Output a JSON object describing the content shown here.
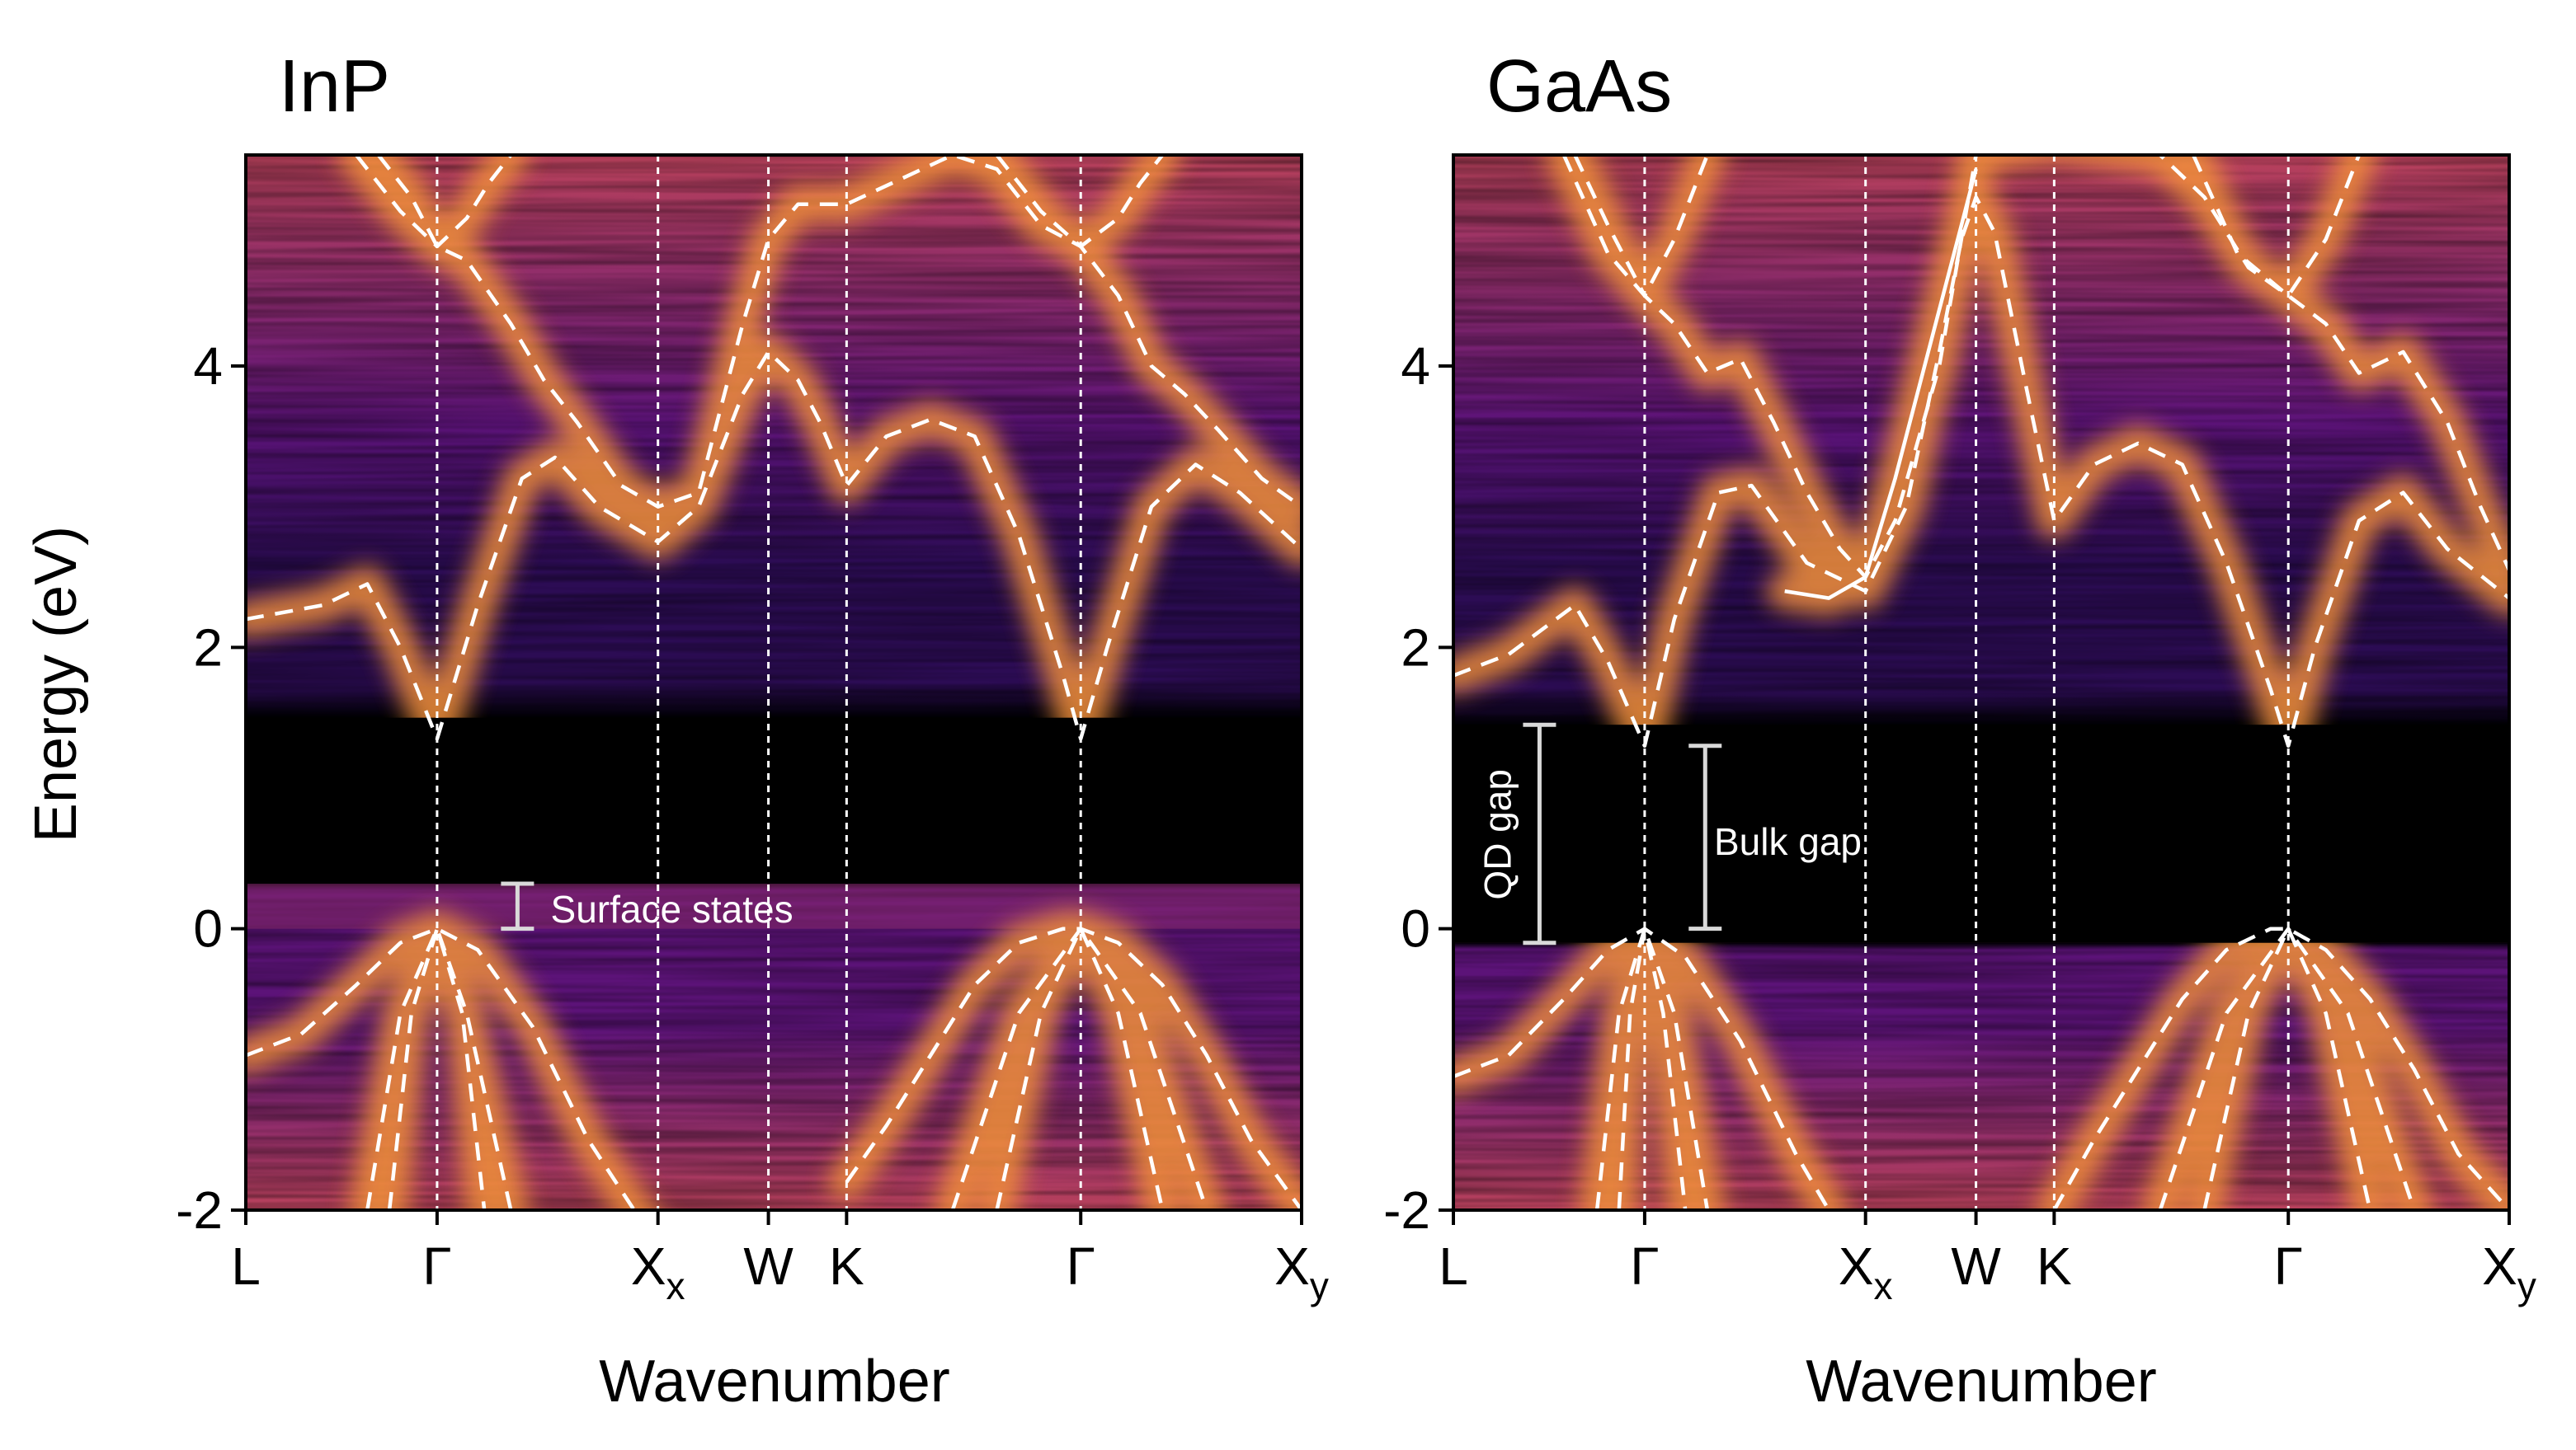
{
  "figure": {
    "ylabel": "Energy (eV)",
    "xlabel": "Wavenumber",
    "colormap": [
      "#000004",
      "#2c0c54",
      "#5c1378",
      "#8a2a6d",
      "#b8415b",
      "#de6340",
      "#f2903a",
      "#f8bf4e",
      "#fcf2b0"
    ]
  },
  "chart_data": [
    {
      "type": "heatmap",
      "title": "InP",
      "xlabel": "Wavenumber",
      "ylabel": "Energy (eV)",
      "ylim": [
        -2,
        5.5
      ],
      "yticks": [
        -2,
        0,
        2,
        4
      ],
      "k_points": [
        {
          "label": "L",
          "sub": "",
          "k": 0.0
        },
        {
          "label": "Γ",
          "sub": "",
          "k": 0.866
        },
        {
          "label": "X",
          "sub": "x",
          "k": 1.866
        },
        {
          "label": "W",
          "sub": "",
          "k": 2.366
        },
        {
          "label": "K",
          "sub": "",
          "k": 2.72
        },
        {
          "label": "Γ",
          "sub": "",
          "k": 3.78
        },
        {
          "label": "X",
          "sub": "y",
          "k": 4.78
        }
      ],
      "grid": true,
      "surface_band": [
        0.0,
        0.32
      ],
      "gap_band": [
        0.32,
        1.5
      ],
      "bands": [
        {
          "style": "dashed",
          "k": [
            0,
            0.35,
            0.55,
            0.7,
            0.866,
            1.05,
            1.25,
            1.4,
            1.6,
            1.866,
            2.05,
            2.25,
            2.366,
            2.5,
            2.6,
            2.72,
            2.9,
            3.1,
            3.3,
            3.5,
            3.7,
            3.78,
            3.9,
            4.1,
            4.3,
            4.5,
            4.78
          ],
          "E": [
            2.2,
            2.3,
            2.45,
            2.0,
            1.35,
            2.3,
            3.2,
            3.35,
            3.0,
            2.75,
            3.0,
            3.8,
            4.1,
            3.9,
            3.6,
            3.15,
            3.5,
            3.62,
            3.5,
            2.8,
            1.8,
            1.35,
            2.0,
            3.0,
            3.3,
            3.1,
            2.7
          ]
        },
        {
          "style": "dashed",
          "k": [
            0.6,
            0.75,
            0.866,
            1.0,
            1.2,
            1.35,
            1.5,
            1.7,
            1.866,
            2.05,
            2.25,
            2.366,
            2.5,
            2.72,
            3.2,
            3.4,
            3.6,
            3.78,
            3.95,
            4.1,
            4.25,
            4.4,
            4.6,
            4.78
          ],
          "E": [
            5.5,
            5.2,
            4.85,
            4.75,
            4.3,
            3.9,
            3.6,
            3.15,
            3.0,
            3.1,
            4.3,
            4.9,
            5.15,
            5.15,
            5.5,
            5.4,
            5.0,
            4.85,
            4.5,
            4.0,
            3.8,
            3.55,
            3.2,
            3.0
          ]
        },
        {
          "style": "dashed",
          "k": [
            0.5,
            0.7,
            0.866,
            1.0,
            1.1,
            1.2
          ],
          "E": [
            5.5,
            5.1,
            4.85,
            5.05,
            5.3,
            5.5
          ]
        },
        {
          "style": "dashed",
          "k": [
            3.4,
            3.6,
            3.78,
            3.95,
            4.05,
            4.15
          ],
          "E": [
            5.5,
            5.1,
            4.85,
            5.05,
            5.3,
            5.5
          ]
        },
        {
          "style": "dashed",
          "k": [
            0,
            0.25,
            0.5,
            0.7,
            0.866,
            1.05,
            1.3,
            1.55,
            1.8,
            1.866
          ],
          "E": [
            -0.9,
            -0.75,
            -0.4,
            -0.1,
            0.0,
            -0.15,
            -0.7,
            -1.5,
            -2.1,
            -2.2
          ]
        },
        {
          "style": "dashed",
          "k": [
            0.55,
            0.7,
            0.866,
            1.0,
            1.2
          ],
          "E": [
            -2.0,
            -0.6,
            0.0,
            -0.6,
            -2.0
          ]
        },
        {
          "style": "dashed",
          "k": [
            0.65,
            0.75,
            0.866,
            0.98,
            1.08
          ],
          "E": [
            -2.0,
            -0.6,
            0.0,
            -0.6,
            -2.0
          ]
        },
        {
          "style": "dashed",
          "k": [
            2.72,
            2.9,
            3.1,
            3.3,
            3.5,
            3.7,
            3.78,
            3.95,
            4.15,
            4.35,
            4.55,
            4.78
          ],
          "E": [
            -1.8,
            -1.4,
            -0.9,
            -0.4,
            -0.1,
            0.0,
            0.0,
            -0.1,
            -0.4,
            -0.9,
            -1.5,
            -2.0
          ]
        },
        {
          "style": "dashed",
          "k": [
            3.2,
            3.5,
            3.78,
            4.05,
            4.35
          ],
          "E": [
            -2.0,
            -0.6,
            0.0,
            -0.6,
            -2.0
          ]
        },
        {
          "style": "dashed",
          "k": [
            3.4,
            3.6,
            3.78,
            3.95,
            4.15
          ],
          "E": [
            -2.0,
            -0.6,
            0.0,
            -0.6,
            -2.0
          ]
        }
      ],
      "annotations": [
        {
          "text": "Surface states",
          "type": "bracket",
          "k": 1.23,
          "E_low": 0.0,
          "E_high": 0.32,
          "label_k": 1.38,
          "label_E": 0.14
        }
      ]
    },
    {
      "type": "heatmap",
      "title": "GaAs",
      "xlabel": "Wavenumber",
      "ylabel": "",
      "ylim": [
        -2,
        5.5
      ],
      "yticks": [
        -2,
        0,
        2,
        4
      ],
      "k_points": [
        {
          "label": "L",
          "sub": "",
          "k": 0.0
        },
        {
          "label": "Γ",
          "sub": "",
          "k": 0.866
        },
        {
          "label": "X",
          "sub": "x",
          "k": 1.866
        },
        {
          "label": "W",
          "sub": "",
          "k": 2.366
        },
        {
          "label": "K",
          "sub": "",
          "k": 2.72
        },
        {
          "label": "Γ",
          "sub": "",
          "k": 3.78
        },
        {
          "label": "X",
          "sub": "y",
          "k": 4.78
        }
      ],
      "grid": true,
      "surface_band": [
        -0.1,
        0.0
      ],
      "gap_band": [
        -0.1,
        1.45
      ],
      "bands": [
        {
          "style": "dashed",
          "k": [
            0,
            0.25,
            0.55,
            0.7,
            0.866,
            1.0,
            1.2,
            1.35,
            1.6,
            1.866,
            2.05,
            2.2,
            2.3,
            2.366,
            2.45,
            2.6,
            2.72,
            2.9,
            3.1,
            3.3,
            3.5,
            3.7,
            3.78,
            3.9,
            4.1,
            4.3,
            4.5,
            4.78
          ],
          "E": [
            1.8,
            1.95,
            2.3,
            1.9,
            1.3,
            2.2,
            3.1,
            3.15,
            2.6,
            2.4,
            3.0,
            4.1,
            4.9,
            5.2,
            4.95,
            3.8,
            2.9,
            3.3,
            3.45,
            3.3,
            2.6,
            1.7,
            1.3,
            2.0,
            2.9,
            3.1,
            2.7,
            2.35
          ]
        },
        {
          "style": "solid",
          "k": [
            1.5,
            1.7,
            1.866,
            2.0,
            2.15,
            2.3,
            2.366
          ],
          "E": [
            2.4,
            2.35,
            2.5,
            3.2,
            4.1,
            5.0,
            5.4
          ]
        },
        {
          "style": "dashed",
          "k": [
            0.55,
            0.7,
            0.866,
            1.0,
            1.15,
            1.3,
            1.45,
            1.6,
            1.75,
            1.866,
            2.0,
            2.2,
            2.366,
            2.72,
            3.2,
            3.4,
            3.6,
            3.78,
            3.95,
            4.1,
            4.3,
            4.5,
            4.65,
            4.78
          ],
          "E": [
            5.5,
            5.0,
            4.5,
            4.3,
            3.95,
            4.05,
            3.6,
            3.1,
            2.7,
            2.5,
            2.9,
            4.0,
            5.5,
            5.6,
            5.5,
            5.2,
            4.7,
            4.5,
            4.3,
            3.95,
            4.1,
            3.6,
            3.0,
            2.55
          ]
        },
        {
          "style": "dashed",
          "k": [
            0.5,
            0.7,
            0.866,
            1.0,
            1.15
          ],
          "E": [
            5.5,
            4.8,
            4.5,
            4.9,
            5.5
          ]
        },
        {
          "style": "dashed",
          "k": [
            3.35,
            3.55,
            3.78,
            3.95,
            4.1
          ],
          "E": [
            5.5,
            4.8,
            4.5,
            4.9,
            5.5
          ]
        },
        {
          "style": "dashed",
          "k": [
            0,
            0.25,
            0.5,
            0.7,
            0.866,
            1.05,
            1.3,
            1.55,
            1.7
          ],
          "E": [
            -1.05,
            -0.9,
            -0.5,
            -0.15,
            0.0,
            -0.2,
            -0.8,
            -1.6,
            -2.0
          ]
        },
        {
          "style": "dashed",
          "k": [
            0.65,
            0.75,
            0.866,
            1.0,
            1.15
          ],
          "E": [
            -2.0,
            -0.6,
            0.0,
            -0.6,
            -2.0
          ]
        },
        {
          "style": "dashed",
          "k": [
            0.75,
            0.8,
            0.866,
            0.95,
            1.05
          ],
          "E": [
            -2.0,
            -0.6,
            0.0,
            -0.6,
            -2.0
          ]
        },
        {
          "style": "dashed",
          "k": [
            2.72,
            2.9,
            3.1,
            3.3,
            3.5,
            3.7,
            3.78,
            3.95,
            4.15,
            4.35,
            4.55,
            4.78
          ],
          "E": [
            -2.0,
            -1.5,
            -1.0,
            -0.5,
            -0.15,
            0.0,
            0.0,
            -0.15,
            -0.5,
            -1.0,
            -1.6,
            -2.0
          ]
        },
        {
          "style": "dashed",
          "k": [
            3.2,
            3.5,
            3.78,
            4.05,
            4.35
          ],
          "E": [
            -2.0,
            -0.6,
            0.0,
            -0.6,
            -2.0
          ]
        },
        {
          "style": "dashed",
          "k": [
            3.4,
            3.6,
            3.78,
            3.95,
            4.15
          ],
          "E": [
            -2.0,
            -0.6,
            0.0,
            -0.6,
            -2.0
          ]
        }
      ],
      "annotations": [
        {
          "text": "QD gap",
          "type": "bracket",
          "k": 0.39,
          "E_low": -0.1,
          "E_high": 1.45,
          "label_k": 0.2,
          "label_E": 0.67,
          "rotate": -90
        },
        {
          "text": "Bulk gap",
          "type": "bracket",
          "k": 1.14,
          "E_low": 0.0,
          "E_high": 1.3,
          "label_k": 1.18,
          "label_E": 0.62
        }
      ]
    }
  ]
}
